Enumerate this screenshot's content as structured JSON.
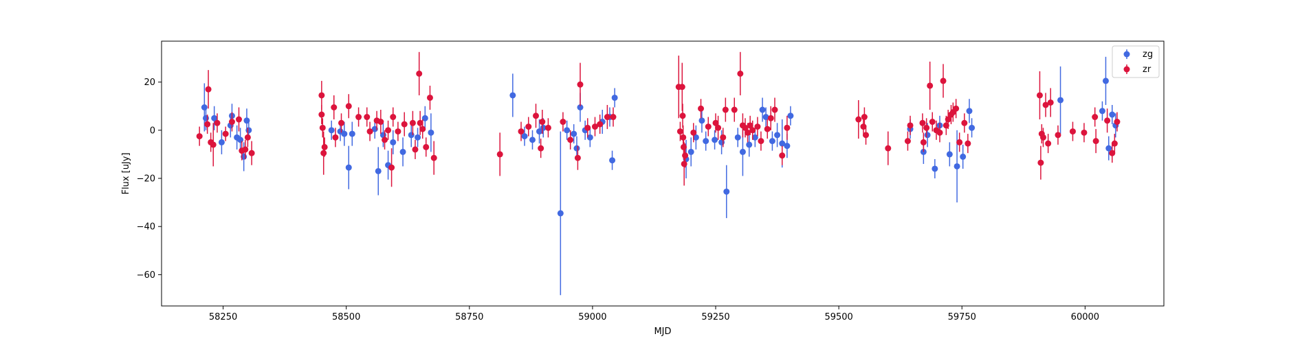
{
  "chart_data": {
    "type": "scatter",
    "title": "",
    "xlabel": "MJD",
    "ylabel": "Flux [uJy]",
    "xlim": [
      58125,
      60160
    ],
    "ylim": [
      -73,
      37
    ],
    "xticks": [
      58250,
      58500,
      58750,
      59000,
      59250,
      59500,
      59750,
      60000
    ],
    "yticks": [
      -60,
      -40,
      -20,
      0,
      20
    ],
    "grid": false,
    "legend_position": "top-right",
    "series": [
      {
        "name": "zg",
        "color": "#4169E1",
        "points": [
          {
            "x": 58212,
            "y": 9.5,
            "err": 10
          },
          {
            "x": 58215,
            "y": 5,
            "err": 5
          },
          {
            "x": 58232,
            "y": 5,
            "err": 5
          },
          {
            "x": 58247,
            "y": -5,
            "err": 5
          },
          {
            "x": 58265,
            "y": 2,
            "err": 5
          },
          {
            "x": 58268,
            "y": 6,
            "err": 5
          },
          {
            "x": 58278,
            "y": -3,
            "err": 5
          },
          {
            "x": 58285,
            "y": -4,
            "err": 5
          },
          {
            "x": 58292,
            "y": -11,
            "err": 6
          },
          {
            "x": 58298,
            "y": 4,
            "err": 5
          },
          {
            "x": 58302,
            "y": 0,
            "err": 4
          },
          {
            "x": 58470,
            "y": 0,
            "err": 4
          },
          {
            "x": 58488,
            "y": -0.5,
            "err": 4
          },
          {
            "x": 58496,
            "y": -1.5,
            "err": 5
          },
          {
            "x": 58505,
            "y": -15.5,
            "err": 9
          },
          {
            "x": 58512,
            "y": -1.5,
            "err": 5
          },
          {
            "x": 58558,
            "y": 0.5,
            "err": 4
          },
          {
            "x": 58565,
            "y": -17,
            "err": 10
          },
          {
            "x": 58575,
            "y": -2,
            "err": 5
          },
          {
            "x": 58585,
            "y": -14.5,
            "err": 6
          },
          {
            "x": 58595,
            "y": -5,
            "err": 5
          },
          {
            "x": 58615,
            "y": -9,
            "err": 6
          },
          {
            "x": 58632,
            "y": -2,
            "err": 5
          },
          {
            "x": 58645,
            "y": -3,
            "err": 4
          },
          {
            "x": 58660,
            "y": 5,
            "err": 5
          },
          {
            "x": 58672,
            "y": -1,
            "err": 8
          },
          {
            "x": 58838,
            "y": 14.5,
            "err": 9
          },
          {
            "x": 58862,
            "y": -2.5,
            "err": 4
          },
          {
            "x": 58878,
            "y": -4,
            "err": 4
          },
          {
            "x": 58892,
            "y": -0.5,
            "err": 5
          },
          {
            "x": 58900,
            "y": 1,
            "err": 4
          },
          {
            "x": 58935,
            "y": -34.5,
            "err": 34
          },
          {
            "x": 58948,
            "y": 0,
            "err": 4
          },
          {
            "x": 58962,
            "y": -1.5,
            "err": 4
          },
          {
            "x": 58968,
            "y": -7.5,
            "err": 5
          },
          {
            "x": 58975,
            "y": 9.5,
            "err": 6
          },
          {
            "x": 58985,
            "y": 0,
            "err": 4
          },
          {
            "x": 58995,
            "y": -3,
            "err": 4
          },
          {
            "x": 59020,
            "y": 3.5,
            "err": 5
          },
          {
            "x": 59035,
            "y": 5.5,
            "err": 4
          },
          {
            "x": 59040,
            "y": -12.5,
            "err": 4
          },
          {
            "x": 59045,
            "y": 13.5,
            "err": 4
          },
          {
            "x": 59190,
            "y": -12,
            "err": 8
          },
          {
            "x": 59200,
            "y": -9,
            "err": 6
          },
          {
            "x": 59210,
            "y": -3,
            "err": 5
          },
          {
            "x": 59222,
            "y": 4,
            "err": 5
          },
          {
            "x": 59230,
            "y": -4.5,
            "err": 4
          },
          {
            "x": 59248,
            "y": -4,
            "err": 4
          },
          {
            "x": 59262,
            "y": -5,
            "err": 5
          },
          {
            "x": 59272,
            "y": -25.5,
            "err": 11
          },
          {
            "x": 59295,
            "y": -3,
            "err": 4
          },
          {
            "x": 59305,
            "y": -9,
            "err": 10
          },
          {
            "x": 59318,
            "y": -6,
            "err": 5
          },
          {
            "x": 59330,
            "y": -3,
            "err": 4
          },
          {
            "x": 59345,
            "y": 8.5,
            "err": 5
          },
          {
            "x": 59352,
            "y": 5.5,
            "err": 4
          },
          {
            "x": 59365,
            "y": -4.5,
            "err": 4
          },
          {
            "x": 59375,
            "y": -2,
            "err": 5
          },
          {
            "x": 59385,
            "y": -5.5,
            "err": 10
          },
          {
            "x": 59395,
            "y": -6.5,
            "err": 5
          },
          {
            "x": 59402,
            "y": 6,
            "err": 4
          },
          {
            "x": 59645,
            "y": 0.5,
            "err": 4
          },
          {
            "x": 59672,
            "y": -9,
            "err": 5
          },
          {
            "x": 59680,
            "y": -2,
            "err": 5
          },
          {
            "x": 59695,
            "y": -16,
            "err": 4
          },
          {
            "x": 59705,
            "y": 2,
            "err": 4
          },
          {
            "x": 59725,
            "y": -10,
            "err": 5
          },
          {
            "x": 59740,
            "y": -15,
            "err": 15
          },
          {
            "x": 59752,
            "y": -11,
            "err": 5
          },
          {
            "x": 59765,
            "y": 8,
            "err": 5
          },
          {
            "x": 59770,
            "y": 1,
            "err": 4
          },
          {
            "x": 59950,
            "y": 12.5,
            "err": 14
          },
          {
            "x": 60035,
            "y": 8,
            "err": 4
          },
          {
            "x": 60042,
            "y": 20.5,
            "err": 10
          },
          {
            "x": 60048,
            "y": -7.5,
            "err": 5
          },
          {
            "x": 60055,
            "y": 6.5,
            "err": 4
          },
          {
            "x": 60062,
            "y": 2,
            "err": 5
          }
        ]
      },
      {
        "name": "zr",
        "color": "#DC143C",
        "points": [
          {
            "x": 58202,
            "y": -2.5,
            "err": 4
          },
          {
            "x": 58218,
            "y": 2.5,
            "err": 4
          },
          {
            "x": 58220,
            "y": 17,
            "err": 8
          },
          {
            "x": 58225,
            "y": -5,
            "err": 4
          },
          {
            "x": 58230,
            "y": -6,
            "err": 9
          },
          {
            "x": 58238,
            "y": 3,
            "err": 4
          },
          {
            "x": 58255,
            "y": -1.5,
            "err": 3
          },
          {
            "x": 58268,
            "y": 3.5,
            "err": 4
          },
          {
            "x": 58282,
            "y": 4.5,
            "err": 5
          },
          {
            "x": 58288,
            "y": -8.5,
            "err": 4
          },
          {
            "x": 58295,
            "y": -8,
            "err": 4
          },
          {
            "x": 58300,
            "y": -3,
            "err": 4
          },
          {
            "x": 58308,
            "y": -9.5,
            "err": 5
          },
          {
            "x": 58450,
            "y": 14.5,
            "err": 6
          },
          {
            "x": 58450,
            "y": 6.5,
            "err": 4
          },
          {
            "x": 58452,
            "y": 1,
            "err": 4
          },
          {
            "x": 58454,
            "y": -9.5,
            "err": 9
          },
          {
            "x": 58456,
            "y": -7,
            "err": 4
          },
          {
            "x": 58475,
            "y": 9.5,
            "err": 5
          },
          {
            "x": 58478,
            "y": -3,
            "err": 4
          },
          {
            "x": 58490,
            "y": 3,
            "err": 4
          },
          {
            "x": 58505,
            "y": 10,
            "err": 5
          },
          {
            "x": 58525,
            "y": 5.5,
            "err": 4
          },
          {
            "x": 58542,
            "y": 5.5,
            "err": 4
          },
          {
            "x": 58548,
            "y": -0.5,
            "err": 4
          },
          {
            "x": 58562,
            "y": 4,
            "err": 4
          },
          {
            "x": 58570,
            "y": 3.5,
            "err": 5
          },
          {
            "x": 58578,
            "y": -4,
            "err": 4
          },
          {
            "x": 58585,
            "y": 0,
            "err": 4
          },
          {
            "x": 58592,
            "y": -15.5,
            "err": 8
          },
          {
            "x": 58595,
            "y": 5.5,
            "err": 4
          },
          {
            "x": 58605,
            "y": -0.5,
            "err": 4
          },
          {
            "x": 58618,
            "y": 2.5,
            "err": 5
          },
          {
            "x": 58635,
            "y": 3,
            "err": 5
          },
          {
            "x": 58640,
            "y": -8,
            "err": 4
          },
          {
            "x": 58648,
            "y": 23.5,
            "err": 9
          },
          {
            "x": 58650,
            "y": 3,
            "err": 5
          },
          {
            "x": 58655,
            "y": 0.5,
            "err": 4
          },
          {
            "x": 58662,
            "y": -7,
            "err": 4
          },
          {
            "x": 58670,
            "y": 13.5,
            "err": 5
          },
          {
            "x": 58678,
            "y": -11.5,
            "err": 7
          },
          {
            "x": 58812,
            "y": -10,
            "err": 9
          },
          {
            "x": 58855,
            "y": -0.5,
            "err": 4
          },
          {
            "x": 58870,
            "y": 1.5,
            "err": 4
          },
          {
            "x": 58885,
            "y": 6,
            "err": 5
          },
          {
            "x": 58895,
            "y": -7.5,
            "err": 4
          },
          {
            "x": 58898,
            "y": 3.5,
            "err": 5
          },
          {
            "x": 58910,
            "y": 1,
            "err": 4
          },
          {
            "x": 58940,
            "y": 3.5,
            "err": 4
          },
          {
            "x": 58955,
            "y": -4,
            "err": 4
          },
          {
            "x": 58970,
            "y": -11.5,
            "err": 5
          },
          {
            "x": 58975,
            "y": 19,
            "err": 9
          },
          {
            "x": 58990,
            "y": 1,
            "err": 4
          },
          {
            "x": 59005,
            "y": 1.5,
            "err": 4
          },
          {
            "x": 59015,
            "y": 2.5,
            "err": 4
          },
          {
            "x": 59030,
            "y": 5.5,
            "err": 5
          },
          {
            "x": 59042,
            "y": 5.5,
            "err": 4
          },
          {
            "x": 59175,
            "y": 18,
            "err": 13
          },
          {
            "x": 59178,
            "y": -0.5,
            "err": 4
          },
          {
            "x": 59182,
            "y": 18,
            "err": 10
          },
          {
            "x": 59183,
            "y": 6,
            "err": 5
          },
          {
            "x": 59184,
            "y": -3,
            "err": 5
          },
          {
            "x": 59185,
            "y": -7,
            "err": 5
          },
          {
            "x": 59186,
            "y": -14,
            "err": 9
          },
          {
            "x": 59188,
            "y": -10.5,
            "err": 5
          },
          {
            "x": 59205,
            "y": -1,
            "err": 4
          },
          {
            "x": 59220,
            "y": 9,
            "err": 4
          },
          {
            "x": 59235,
            "y": 1.5,
            "err": 4
          },
          {
            "x": 59250,
            "y": 3,
            "err": 4
          },
          {
            "x": 59255,
            "y": 1,
            "err": 5
          },
          {
            "x": 59265,
            "y": -3,
            "err": 4
          },
          {
            "x": 59270,
            "y": 8.5,
            "err": 5
          },
          {
            "x": 59288,
            "y": 8.5,
            "err": 5
          },
          {
            "x": 59300,
            "y": 23.5,
            "err": 9
          },
          {
            "x": 59305,
            "y": 2,
            "err": 5
          },
          {
            "x": 59310,
            "y": 1,
            "err": 4
          },
          {
            "x": 59315,
            "y": -1,
            "err": 4
          },
          {
            "x": 59320,
            "y": 2,
            "err": 4
          },
          {
            "x": 59325,
            "y": 0,
            "err": 4
          },
          {
            "x": 59335,
            "y": 1.5,
            "err": 4
          },
          {
            "x": 59342,
            "y": -4.5,
            "err": 4
          },
          {
            "x": 59355,
            "y": 0.5,
            "err": 4
          },
          {
            "x": 59362,
            "y": 5,
            "err": 5
          },
          {
            "x": 59370,
            "y": 8.5,
            "err": 5
          },
          {
            "x": 59385,
            "y": -10.5,
            "err": 4
          },
          {
            "x": 59395,
            "y": 1,
            "err": 5
          },
          {
            "x": 59540,
            "y": 4.5,
            "err": 8
          },
          {
            "x": 59550,
            "y": 1.5,
            "err": 4
          },
          {
            "x": 59552,
            "y": 5.5,
            "err": 4
          },
          {
            "x": 59555,
            "y": -2,
            "err": 4
          },
          {
            "x": 59600,
            "y": -7.5,
            "err": 7
          },
          {
            "x": 59640,
            "y": -4.5,
            "err": 4
          },
          {
            "x": 59645,
            "y": 2,
            "err": 4
          },
          {
            "x": 59670,
            "y": 3,
            "err": 4
          },
          {
            "x": 59672,
            "y": -5,
            "err": 4
          },
          {
            "x": 59678,
            "y": 1,
            "err": 4
          },
          {
            "x": 59685,
            "y": 18.5,
            "err": 10
          },
          {
            "x": 59690,
            "y": 3.5,
            "err": 4
          },
          {
            "x": 59698,
            "y": 0,
            "err": 4
          },
          {
            "x": 59705,
            "y": -1,
            "err": 4
          },
          {
            "x": 59712,
            "y": 20.5,
            "err": 7
          },
          {
            "x": 59718,
            "y": 2,
            "err": 4
          },
          {
            "x": 59722,
            "y": 4.5,
            "err": 4
          },
          {
            "x": 59728,
            "y": 6.5,
            "err": 4
          },
          {
            "x": 59732,
            "y": 7.5,
            "err": 4
          },
          {
            "x": 59738,
            "y": 9,
            "err": 4
          },
          {
            "x": 59745,
            "y": -5,
            "err": 4
          },
          {
            "x": 59755,
            "y": 3,
            "err": 4
          },
          {
            "x": 59762,
            "y": -5.5,
            "err": 4
          },
          {
            "x": 59908,
            "y": 14.5,
            "err": 10
          },
          {
            "x": 59910,
            "y": -13.5,
            "err": 7
          },
          {
            "x": 59912,
            "y": -1.5,
            "err": 4
          },
          {
            "x": 59915,
            "y": -3,
            "err": 4
          },
          {
            "x": 59920,
            "y": 10.5,
            "err": 5
          },
          {
            "x": 59925,
            "y": -5.5,
            "err": 4
          },
          {
            "x": 59930,
            "y": 11.5,
            "err": 6
          },
          {
            "x": 59945,
            "y": -2,
            "err": 4
          },
          {
            "x": 59975,
            "y": -0.5,
            "err": 4
          },
          {
            "x": 59998,
            "y": -1,
            "err": 4
          },
          {
            "x": 60020,
            "y": 5.5,
            "err": 4
          },
          {
            "x": 60022,
            "y": -4.5,
            "err": 5
          },
          {
            "x": 60045,
            "y": 4,
            "err": 5
          },
          {
            "x": 60055,
            "y": -9.5,
            "err": 4
          },
          {
            "x": 60060,
            "y": -5.5,
            "err": 4
          },
          {
            "x": 60065,
            "y": 3.5,
            "err": 4
          }
        ]
      }
    ]
  }
}
